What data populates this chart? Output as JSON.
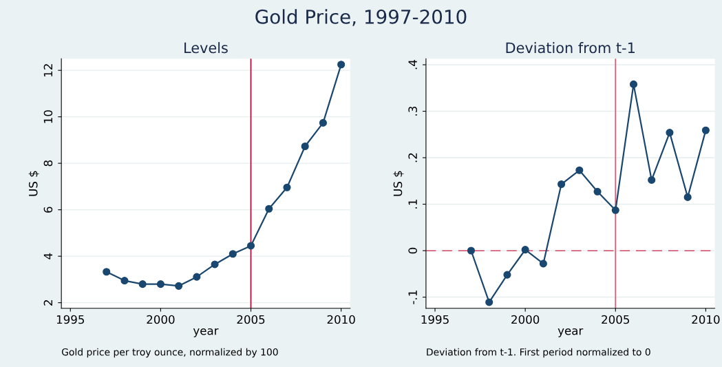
{
  "chart_data": [
    {
      "type": "other",
      "title": "Gold Price, 1997-2010"
    },
    {
      "type": "line",
      "title": "Levels",
      "xlabel": "year",
      "ylabel": "US $",
      "x": [
        1997,
        1998,
        1999,
        2000,
        2001,
        2002,
        2003,
        2004,
        2005,
        2006,
        2007,
        2008,
        2009,
        2010
      ],
      "series": [
        {
          "color": "#1a476f",
          "values": [
            3.33,
            2.95,
            2.8,
            2.8,
            2.72,
            3.11,
            3.65,
            4.1,
            4.45,
            6.04,
            6.96,
            8.73,
            9.74,
            12.25
          ]
        }
      ],
      "xlim": [
        1994.5,
        2010.5
      ],
      "xticks": [
        1995,
        2000,
        2005,
        2010
      ],
      "ylim": [
        1.76,
        12.5
      ],
      "yticks": [
        2,
        4,
        6,
        8,
        10,
        12
      ],
      "ref_lines": [
        {
          "axis": "x",
          "value": 2005,
          "color": "#b0103a",
          "line_style": "solid"
        }
      ],
      "annotations": [
        "Gold price per troy ounce, normalized by 100"
      ],
      "grid": "y",
      "marker": "circle",
      "line_style": "solid"
    },
    {
      "type": "line",
      "title": "Deviation from t-1",
      "xlabel": "year",
      "ylabel": "US $",
      "x": [
        1997,
        1998,
        1999,
        2000,
        2001,
        2002,
        2003,
        2004,
        2005,
        2006,
        2007,
        2008,
        2009,
        2010
      ],
      "series": [
        {
          "color": "#1a476f",
          "values": [
            0,
            -0.111,
            -0.052,
            0.002,
            -0.028,
            0.143,
            0.173,
            0.127,
            0.087,
            0.358,
            0.152,
            0.254,
            0.115,
            0.259
          ]
        }
      ],
      "xlim": [
        1994.5,
        2010.5
      ],
      "xticks": [
        1995,
        2000,
        2005,
        2010
      ],
      "ylim": [
        -0.124,
        0.413
      ],
      "yticks": [
        {
          "value": -0.1,
          "label": "-.1"
        },
        0,
        {
          "value": 0.1,
          "label": ".1"
        },
        {
          "value": 0.2,
          "label": ".2"
        },
        {
          "value": 0.3,
          "label": ".3"
        },
        {
          "value": 0.4,
          "label": ".4"
        }
      ],
      "ref_lines": [
        {
          "axis": "x",
          "value": 2005,
          "color": "#d7607a",
          "line_style": "solid"
        },
        {
          "axis": "y",
          "value": 0,
          "color": "#d7607a",
          "line_style": "dashed"
        }
      ],
      "annotations": [
        "Deviation from t-1. First period normalized to 0"
      ],
      "grid": "y",
      "marker": "circle",
      "line_style": "solid"
    }
  ]
}
